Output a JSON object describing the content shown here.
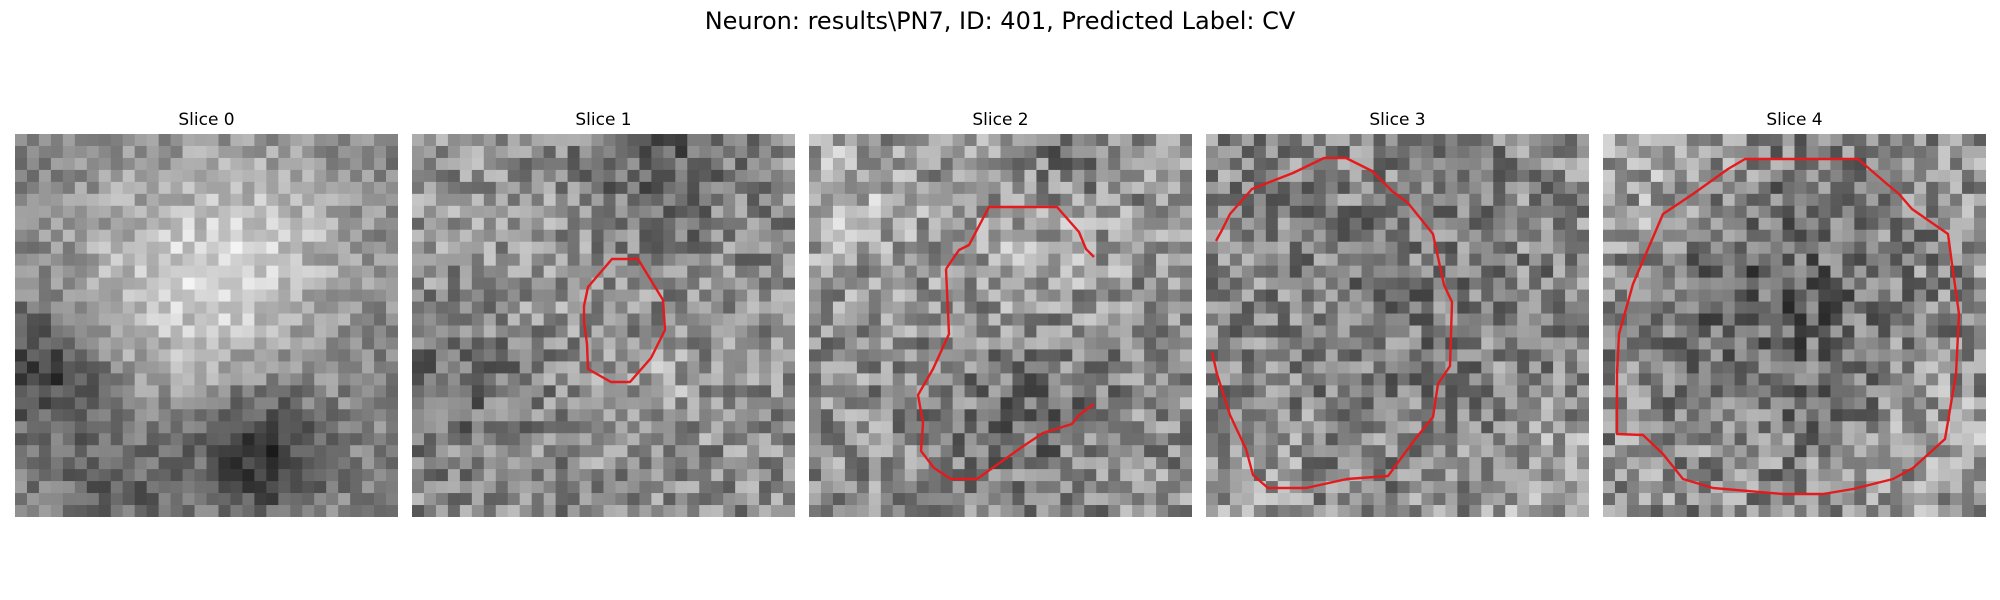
{
  "figure": {
    "title": "Neuron: results\\PN7, ID: 401, Predicted Label: CV"
  },
  "panels": [
    {
      "title": "Slice 0",
      "contour": "none"
    },
    {
      "title": "Slice 1",
      "contour": "red-outline"
    },
    {
      "title": "Slice 2",
      "contour": "red-outline"
    },
    {
      "title": "Slice 3",
      "contour": "red-outline"
    },
    {
      "title": "Slice 4",
      "contour": "red-outline"
    }
  ],
  "colors": {
    "contour": "#e41a1c",
    "background": "#ffffff"
  }
}
